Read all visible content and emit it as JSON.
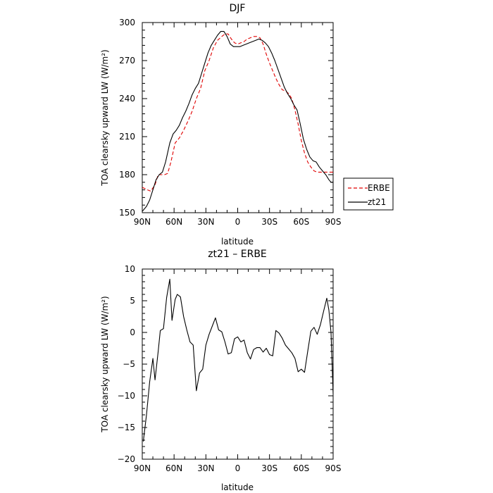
{
  "chart_data": [
    {
      "type": "line",
      "title": "DJF",
      "xlabel": "latitude",
      "ylabel": "TOA clearsky upward LW (W/m²)",
      "xlim": [
        -90,
        90
      ],
      "ylim": [
        150,
        300
      ],
      "xticks": [
        -90,
        -60,
        -30,
        0,
        30,
        60,
        90
      ],
      "xtick_labels": [
        "90N",
        "60N",
        "30N",
        "0",
        "30S",
        "60S",
        "90S"
      ],
      "yticks": [
        150,
        180,
        210,
        240,
        270,
        300
      ],
      "ytick_labels": [
        "150",
        "180",
        "210",
        "240",
        "270",
        "300"
      ],
      "legend_position": "outside-right",
      "series": [
        {
          "name": "ERBE",
          "color": "#e00000",
          "dash": "dashed",
          "x": [
            -90,
            -85,
            -82,
            -78,
            -75,
            -72,
            -69,
            -66,
            -63,
            -59,
            -55,
            -51,
            -47,
            -43,
            -39,
            -35,
            -31,
            -27,
            -23,
            -19,
            -15,
            -12,
            -9,
            -6,
            -3,
            0,
            3,
            6,
            9,
            12,
            15,
            18,
            21,
            24,
            27,
            30,
            33,
            36,
            39,
            42,
            45,
            48,
            51,
            54,
            57,
            60,
            63,
            66,
            69,
            72,
            75,
            78,
            81,
            84,
            87,
            90
          ],
          "y": [
            170,
            168,
            167,
            172,
            180,
            180,
            180,
            181,
            190,
            205,
            209,
            215,
            222,
            230,
            240,
            248,
            262,
            270,
            280,
            286,
            289,
            291,
            291,
            287,
            284,
            283,
            284,
            285,
            287,
            288,
            289,
            289,
            288,
            283,
            275,
            268,
            262,
            256,
            251,
            247,
            246,
            244,
            240,
            231,
            220,
            207,
            197,
            190,
            186,
            183,
            182,
            182,
            182,
            182,
            182,
            182
          ]
        },
        {
          "name": "zt21",
          "color": "#000000",
          "dash": "solid",
          "x": [
            -90,
            -86,
            -83,
            -80,
            -77,
            -74,
            -71,
            -68,
            -64,
            -61,
            -58,
            -55,
            -52,
            -49,
            -46,
            -43,
            -40,
            -37,
            -34,
            -31,
            -28,
            -25,
            -22,
            -19,
            -16,
            -13,
            -10,
            -7,
            -4,
            -1,
            2,
            5,
            8,
            11,
            14,
            17,
            20,
            23,
            26,
            29,
            32,
            35,
            38,
            41,
            44,
            47,
            50,
            53,
            56,
            59,
            62,
            65,
            68,
            71,
            74,
            77,
            80,
            83,
            86,
            88,
            90
          ],
          "y": [
            151,
            155,
            160,
            168,
            176,
            180,
            182,
            190,
            205,
            212,
            215,
            219,
            225,
            230,
            236,
            243,
            248,
            252,
            260,
            268,
            276,
            282,
            286,
            290,
            293,
            293,
            289,
            283,
            281,
            281,
            281,
            282,
            283,
            284,
            285,
            286,
            287,
            286,
            284,
            281,
            276,
            270,
            263,
            256,
            249,
            244,
            240,
            235,
            231,
            220,
            208,
            200,
            194,
            191,
            190,
            186,
            183,
            180,
            176,
            174,
            174
          ]
        }
      ]
    },
    {
      "type": "line",
      "title": "zt21 – ERBE",
      "xlabel": "latitude",
      "ylabel": "TOA clearsky upward LW (W/m²)",
      "xlim": [
        -90,
        90
      ],
      "ylim": [
        -20,
        10
      ],
      "xticks": [
        -90,
        -60,
        -30,
        0,
        30,
        60,
        90
      ],
      "xtick_labels": [
        "90N",
        "60N",
        "30N",
        "0",
        "30S",
        "60S",
        "90S"
      ],
      "yticks": [
        -20,
        -15,
        -10,
        -5,
        0,
        5,
        10
      ],
      "ytick_labels": [
        "−20",
        "−15",
        "−10",
        "−5",
        "0",
        "5",
        "10"
      ],
      "series": [
        {
          "name": "zt21 – ERBE",
          "color": "#000000",
          "dash": "solid",
          "x": [
            -89,
            -86,
            -83,
            -80,
            -78,
            -75,
            -73,
            -70,
            -67,
            -64,
            -62,
            -59,
            -57,
            -54,
            -51,
            -48,
            -45,
            -42,
            -39,
            -36,
            -33,
            -30,
            -27,
            -24,
            -21,
            -18,
            -15,
            -12,
            -9,
            -6,
            -3,
            0,
            3,
            6,
            9,
            12,
            15,
            18,
            21,
            24,
            27,
            30,
            33,
            36,
            39,
            42,
            45,
            48,
            51,
            54,
            57,
            60,
            63,
            66,
            69,
            72,
            75,
            78,
            81,
            84,
            86,
            88,
            90
          ],
          "y": [
            -17.2,
            -13,
            -7.8,
            -4.1,
            -7.5,
            -3,
            0.3,
            0.6,
            5.5,
            8.4,
            1.9,
            5.2,
            6.0,
            5.6,
            2.5,
            0.4,
            -1.5,
            -2,
            -9.2,
            -6.4,
            -5.8,
            -2,
            -0.3,
            1.0,
            2.3,
            0.4,
            0.1,
            -1.5,
            -3.4,
            -3.2,
            -1.0,
            -0.7,
            -1.5,
            -1.2,
            -3.2,
            -4.2,
            -2.7,
            -2.4,
            -2.4,
            -3.1,
            -2.5,
            -3.5,
            -3.7,
            0.3,
            -0.1,
            -0.9,
            -2.0,
            -2.6,
            -3.2,
            -4.1,
            -6.2,
            -5.8,
            -6.3,
            -3.0,
            0.2,
            0.8,
            -0.3,
            1.2,
            3.3,
            5.4,
            3.5,
            0.0,
            -9.7
          ]
        }
      ]
    }
  ]
}
